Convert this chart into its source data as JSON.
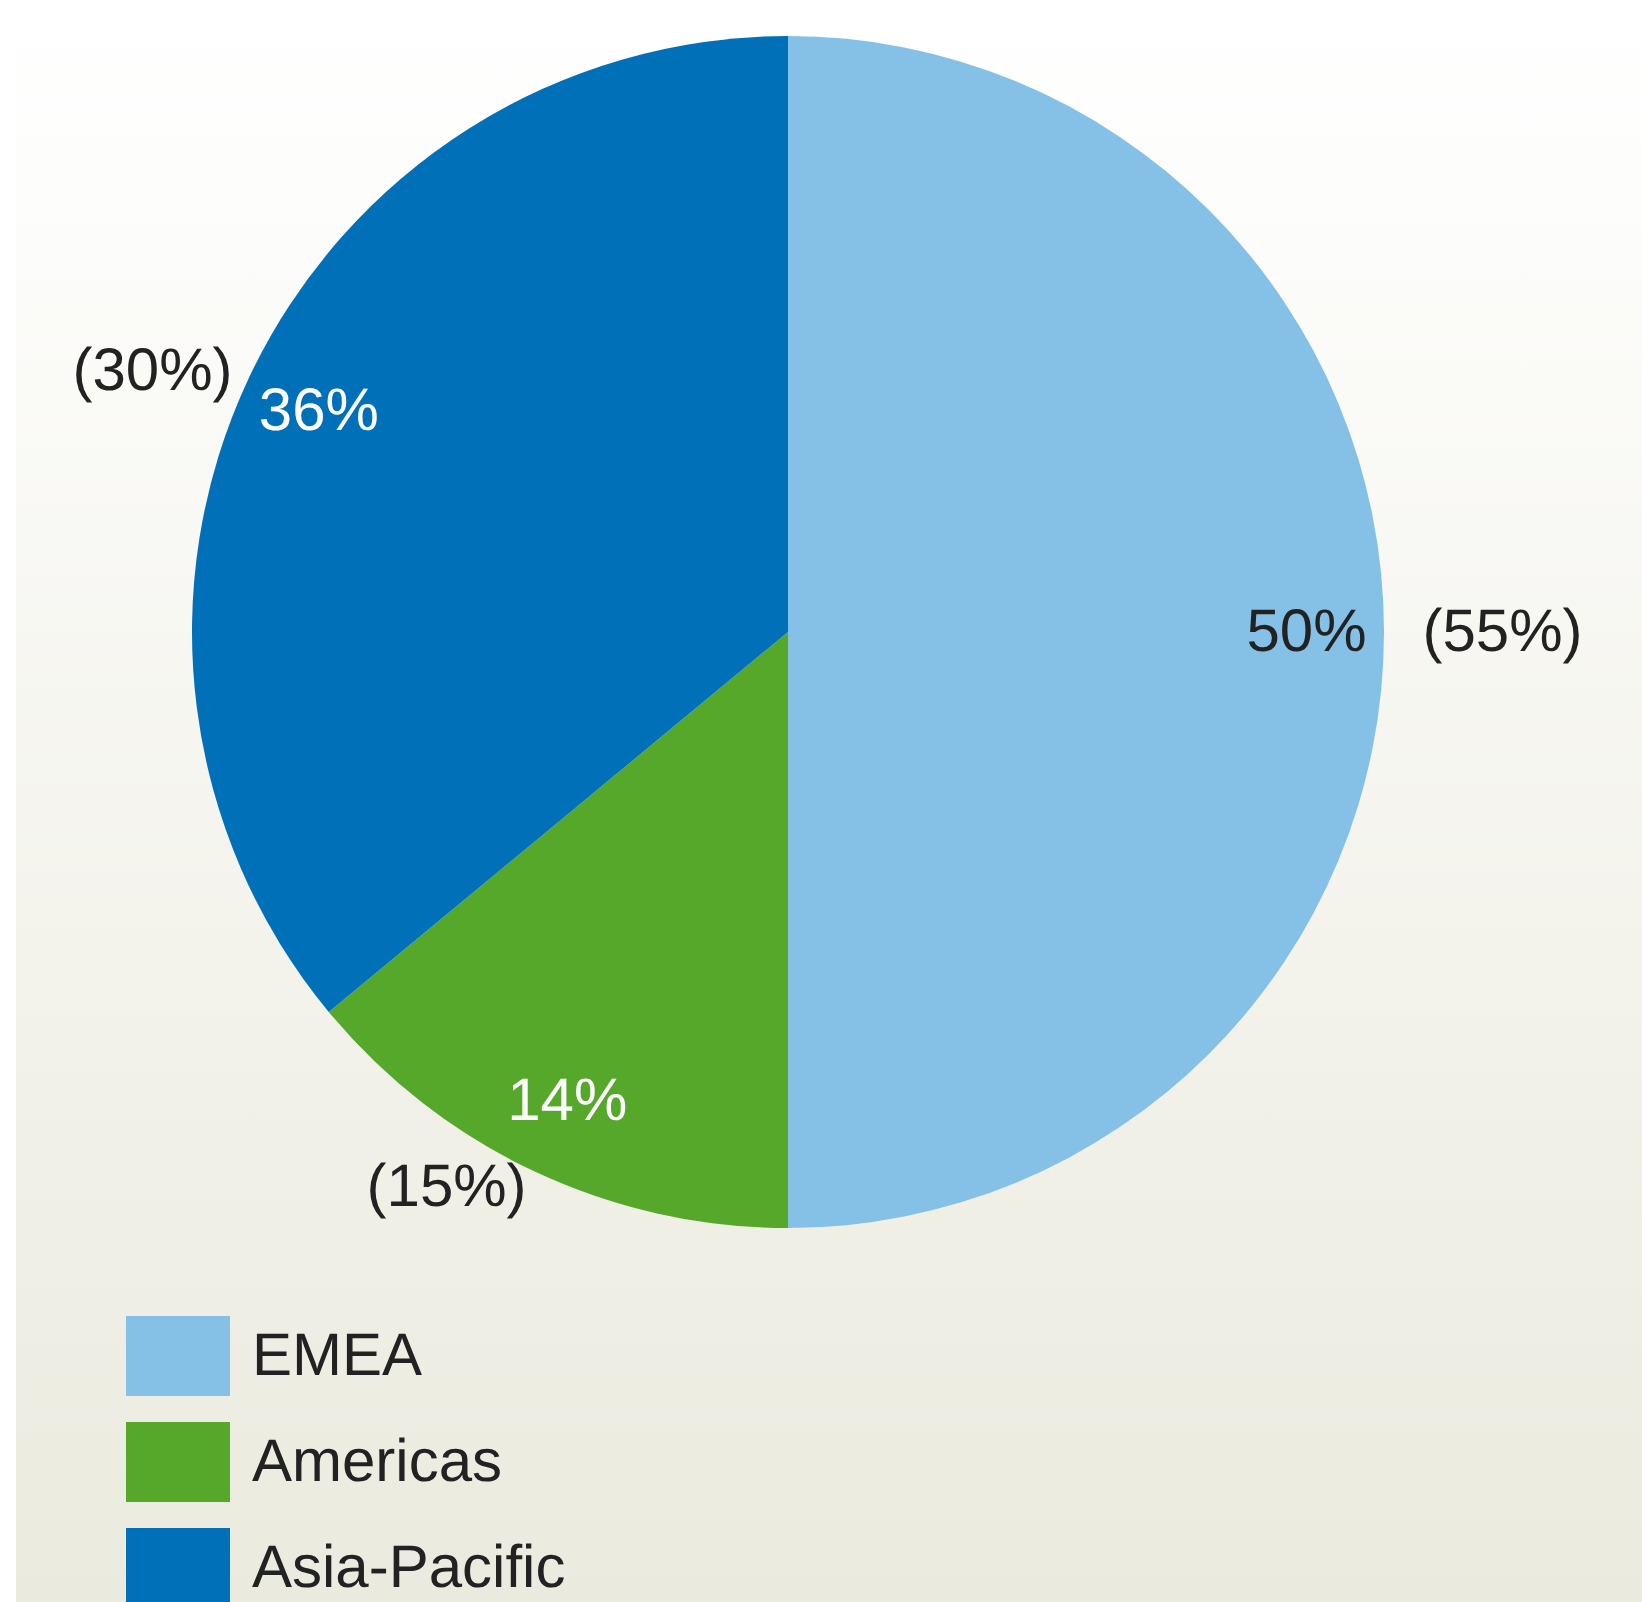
{
  "chart_data": {
    "type": "pie",
    "categories": [
      "EMEA",
      "Americas",
      "Asia-Pacific"
    ],
    "values": [
      50,
      14,
      36
    ],
    "value_labels": [
      "50%",
      "14%",
      "36%"
    ],
    "colors": [
      "#85c1e6",
      "#56a82a",
      "#0070b8"
    ],
    "legend": "bottom left",
    "annotations": [
      "(55%)",
      "(15%)",
      "(30%)"
    ]
  }
}
